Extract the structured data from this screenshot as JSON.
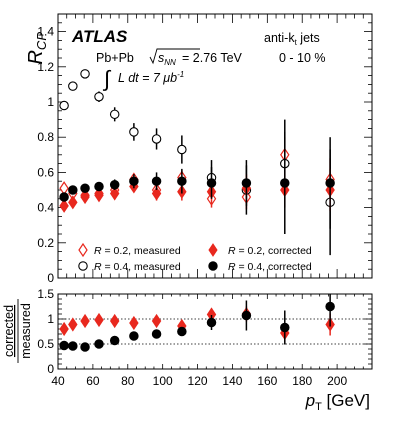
{
  "chart_data": [
    {
      "type": "scatter",
      "panel": "top",
      "ylabel": "R_CP",
      "ylabel_main": "R",
      "ylabel_sub": "CP",
      "xlim": [
        40,
        220
      ],
      "ylim": [
        0,
        1.5
      ],
      "x_ticks": [
        "40",
        "60",
        "80",
        "100",
        "120",
        "140",
        "160",
        "180",
        "200"
      ],
      "y_ticks": [
        "0",
        "0.2",
        "0.4",
        "0.6",
        "0.8",
        "1",
        "1.2",
        "1.4"
      ],
      "experiment": "ATLAS",
      "collision": "Pb+Pb",
      "energy_label": "= 2.76 TeV",
      "sqrt_s_label": "s",
      "sqrt_s_sub": "NN",
      "lumi_label": "L dt = 7 μb",
      "lumi_exp": "-1",
      "jet_algo": "anti-k",
      "jet_algo_sub": "t",
      "jet_algo_suffix": " jets",
      "centrality": "0 - 10 %",
      "legend_placement": "bottom",
      "series": [
        {
          "name": "R = 0.2, measured",
          "name_r": "R",
          "name_rest": " = 0.2, measured",
          "marker": "open-diamond",
          "color": "#e8281e",
          "points": [
            {
              "x": 43.5,
              "y": 0.51,
              "err": 0.02
            },
            {
              "x": 48.5,
              "y": 0.48,
              "err": 0.02
            },
            {
              "x": 55.5,
              "y": 0.47,
              "err": 0.02
            },
            {
              "x": 63.5,
              "y": 0.48,
              "err": 0.02
            },
            {
              "x": 72.5,
              "y": 0.5,
              "err": 0.02
            },
            {
              "x": 83.5,
              "y": 0.56,
              "err": 0.03
            },
            {
              "x": 96.5,
              "y": 0.5,
              "err": 0.03
            },
            {
              "x": 111,
              "y": 0.57,
              "err": 0.04
            },
            {
              "x": 128,
              "y": 0.45,
              "err": 0.05
            },
            {
              "x": 148,
              "y": 0.46,
              "err": 0.07
            },
            {
              "x": 170,
              "y": 0.7,
              "err": 0.1
            },
            {
              "x": 196,
              "y": 0.56,
              "err": 0.12
            }
          ]
        },
        {
          "name": "R = 0.4, measured",
          "name_r": "R",
          "name_rest": " = 0.4, measured",
          "marker": "open-circle",
          "color": "#000000",
          "points": [
            {
              "x": 43.5,
              "y": 0.98,
              "err": 0.02
            },
            {
              "x": 48.5,
              "y": 1.09,
              "err": 0.02
            },
            {
              "x": 55.5,
              "y": 1.16,
              "err": 0.02
            },
            {
              "x": 63.5,
              "y": 1.03,
              "err": 0.03
            },
            {
              "x": 72.5,
              "y": 0.93,
              "err": 0.04
            },
            {
              "x": 83.5,
              "y": 0.83,
              "err": 0.05
            },
            {
              "x": 96.5,
              "y": 0.79,
              "err": 0.06
            },
            {
              "x": 111,
              "y": 0.73,
              "err": 0.08
            },
            {
              "x": 128,
              "y": 0.57,
              "err": 0.1
            },
            {
              "x": 148,
              "y": 0.5,
              "err": 0.14
            },
            {
              "x": 170,
              "y": 0.65,
              "err": 0.25
            },
            {
              "x": 196,
              "y": 0.43,
              "err": 0.3
            }
          ]
        },
        {
          "name": "R = 0.2, corrected",
          "name_r": "R",
          "name_rest": " = 0.2, corrected",
          "marker": "filled-diamond",
          "color": "#e8281e",
          "points": [
            {
              "x": 43.5,
              "y": 0.41,
              "err": 0.02
            },
            {
              "x": 48.5,
              "y": 0.43,
              "err": 0.02
            },
            {
              "x": 55.5,
              "y": 0.46,
              "err": 0.02
            },
            {
              "x": 63.5,
              "y": 0.47,
              "err": 0.02
            },
            {
              "x": 72.5,
              "y": 0.48,
              "err": 0.02
            },
            {
              "x": 83.5,
              "y": 0.52,
              "err": 0.03
            },
            {
              "x": 96.5,
              "y": 0.48,
              "err": 0.04
            },
            {
              "x": 111,
              "y": 0.49,
              "err": 0.05
            },
            {
              "x": 128,
              "y": 0.49,
              "err": 0.07
            },
            {
              "x": 148,
              "y": 0.51,
              "err": 0.08
            },
            {
              "x": 170,
              "y": 0.5,
              "err": 0.1
            },
            {
              "x": 196,
              "y": 0.5,
              "err": 0.12
            }
          ]
        },
        {
          "name": "R = 0.4, corrected",
          "name_r": "R",
          "name_rest": " = 0.4, corrected",
          "marker": "filled-circle",
          "color": "#000000",
          "points": [
            {
              "x": 43.5,
              "y": 0.46,
              "err": 0.02
            },
            {
              "x": 48.5,
              "y": 0.5,
              "err": 0.02
            },
            {
              "x": 55.5,
              "y": 0.51,
              "err": 0.02
            },
            {
              "x": 63.5,
              "y": 0.52,
              "err": 0.02
            },
            {
              "x": 72.5,
              "y": 0.53,
              "err": 0.03
            },
            {
              "x": 83.5,
              "y": 0.55,
              "err": 0.04
            },
            {
              "x": 96.5,
              "y": 0.55,
              "err": 0.05
            },
            {
              "x": 111,
              "y": 0.55,
              "err": 0.07
            },
            {
              "x": 128,
              "y": 0.54,
              "err": 0.09
            },
            {
              "x": 148,
              "y": 0.54,
              "err": 0.13
            },
            {
              "x": 170,
              "y": 0.54,
              "err": 0.29
            },
            {
              "x": 196,
              "y": 0.54,
              "err": 0.26
            }
          ]
        }
      ]
    },
    {
      "type": "scatter",
      "panel": "ratio",
      "ylabel": "corrected / measured",
      "ylabel_top": "corrected",
      "ylabel_bottom": "measured",
      "xlabel": "p_T [GeV]",
      "xlabel_main": "p",
      "xlabel_sub": "T",
      "xlabel_unit": " [GeV]",
      "xlim": [
        40,
        220
      ],
      "ylim": [
        0,
        1.5
      ],
      "x_ticks": [
        "40",
        "60",
        "80",
        "100",
        "120",
        "140",
        "160",
        "180",
        "200"
      ],
      "y_ticks": [
        "0",
        "0.5",
        "1",
        "1.5"
      ],
      "reference_lines": [
        0.5,
        1.0
      ],
      "series": [
        {
          "name": "R = 0.2",
          "marker": "filled-diamond",
          "color": "#e8281e",
          "points": [
            {
              "x": 43.5,
              "y": 0.8,
              "err": 0.03
            },
            {
              "x": 48.5,
              "y": 0.89,
              "err": 0.03
            },
            {
              "x": 55.5,
              "y": 0.96,
              "err": 0.03
            },
            {
              "x": 63.5,
              "y": 0.98,
              "err": 0.03
            },
            {
              "x": 72.5,
              "y": 0.96,
              "err": 0.04
            },
            {
              "x": 83.5,
              "y": 0.92,
              "err": 0.05
            },
            {
              "x": 96.5,
              "y": 0.96,
              "err": 0.06
            },
            {
              "x": 111,
              "y": 0.86,
              "err": 0.08
            },
            {
              "x": 128,
              "y": 1.09,
              "err": 0.12
            },
            {
              "x": 148,
              "y": 1.1,
              "err": 0.15
            },
            {
              "x": 170,
              "y": 0.72,
              "err": 0.18
            },
            {
              "x": 196,
              "y": 0.89,
              "err": 0.22
            }
          ]
        },
        {
          "name": "R = 0.4",
          "marker": "filled-circle",
          "color": "#000000",
          "points": [
            {
              "x": 43.5,
              "y": 0.47,
              "err": 0.02
            },
            {
              "x": 48.5,
              "y": 0.46,
              "err": 0.02
            },
            {
              "x": 55.5,
              "y": 0.44,
              "err": 0.02
            },
            {
              "x": 63.5,
              "y": 0.5,
              "err": 0.02
            },
            {
              "x": 72.5,
              "y": 0.57,
              "err": 0.03
            },
            {
              "x": 83.5,
              "y": 0.66,
              "err": 0.04
            },
            {
              "x": 96.5,
              "y": 0.7,
              "err": 0.06
            },
            {
              "x": 111,
              "y": 0.75,
              "err": 0.08
            },
            {
              "x": 128,
              "y": 0.93,
              "err": 0.15
            },
            {
              "x": 148,
              "y": 1.07,
              "err": 0.3
            },
            {
              "x": 170,
              "y": 0.83,
              "err": 0.34
            },
            {
              "x": 196,
              "y": 1.25,
              "err": 0.4
            }
          ]
        }
      ]
    }
  ]
}
